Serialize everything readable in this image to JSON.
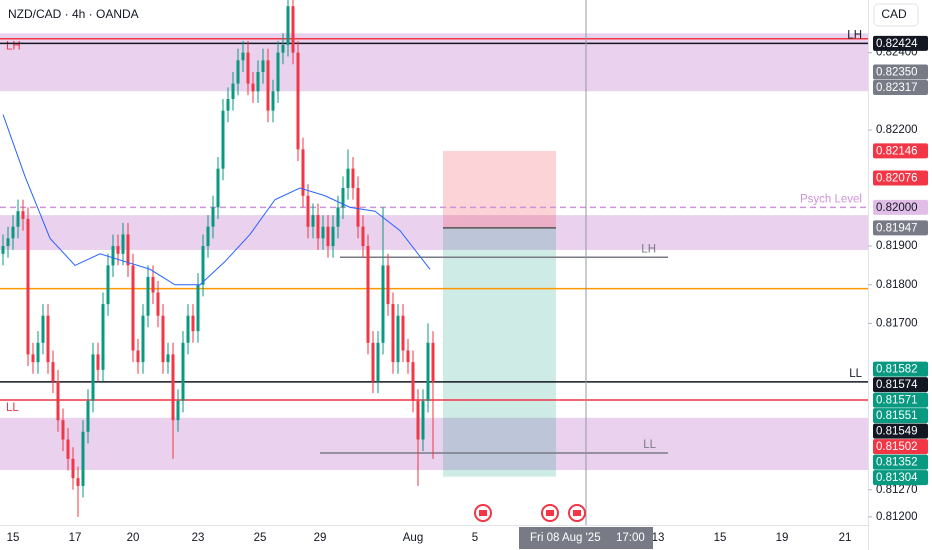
{
  "chart_data": {
    "type": "candlestick",
    "title": "NZD/CAD · 4h · OANDA",
    "currency": "CAD",
    "up_color": "#089981",
    "down_color": "#f23645",
    "open": [
      0.8188,
      0.819,
      0.8192,
      0.8195,
      0.8199,
      0.8197,
      0.8162,
      0.816,
      0.8165,
      0.8172,
      0.816,
      0.8155,
      0.8145,
      0.814,
      0.8135,
      0.813,
      0.8128,
      0.8142,
      0.815,
      0.8162,
      0.8158,
      0.8175,
      0.8185,
      0.819,
      0.8188,
      0.8193,
      0.8185,
      0.8163,
      0.816,
      0.8172,
      0.8182,
      0.8178,
      0.8172,
      0.816,
      0.8162,
      0.8145,
      0.815,
      0.8165,
      0.8172,
      0.8168,
      0.818,
      0.819,
      0.8195,
      0.82,
      0.821,
      0.8225,
      0.8228,
      0.8232,
      0.8238,
      0.824,
      0.8232,
      0.823,
      0.8235,
      0.8238,
      0.8225,
      0.823,
      0.824,
      0.8242,
      0.8252,
      0.824,
      0.8215,
      0.8203,
      0.8195,
      0.8198,
      0.8192,
      0.8195,
      0.819,
      0.8195,
      0.82,
      0.8205,
      0.821,
      0.8205,
      0.8195,
      0.819,
      0.8165,
      0.8155,
      0.8165,
      0.8185,
      0.8175,
      0.816,
      0.8172,
      0.8163,
      0.816,
      0.815,
      0.814,
      0.815,
      0.8165
    ],
    "high": [
      0.8193,
      0.8195,
      0.8198,
      0.8202,
      0.8202,
      0.82,
      0.8165,
      0.8168,
      0.8175,
      0.8175,
      0.8163,
      0.8158,
      0.8148,
      0.8143,
      0.8138,
      0.8133,
      0.8145,
      0.8153,
      0.8165,
      0.8165,
      0.8178,
      0.8188,
      0.8193,
      0.8193,
      0.8196,
      0.8196,
      0.8188,
      0.8166,
      0.8175,
      0.8185,
      0.8185,
      0.8181,
      0.8175,
      0.8165,
      0.8165,
      0.8153,
      0.8168,
      0.8175,
      0.8175,
      0.8183,
      0.8193,
      0.8198,
      0.8203,
      0.8213,
      0.8228,
      0.8231,
      0.8235,
      0.8241,
      0.8243,
      0.8243,
      0.8235,
      0.8238,
      0.8241,
      0.8241,
      0.8233,
      0.8243,
      0.8245,
      0.8254,
      0.8254,
      0.8243,
      0.8218,
      0.8206,
      0.8201,
      0.8201,
      0.8198,
      0.8198,
      0.8198,
      0.8203,
      0.8208,
      0.8215,
      0.8213,
      0.8208,
      0.8198,
      0.8193,
      0.8168,
      0.8168,
      0.82,
      0.8188,
      0.8178,
      0.8175,
      0.8175,
      0.8166,
      0.8163,
      0.8153,
      0.8153,
      0.817,
      0.8168
    ],
    "low": [
      0.8185,
      0.8187,
      0.8189,
      0.8192,
      0.8194,
      0.8159,
      0.8157,
      0.8157,
      0.8162,
      0.8157,
      0.8152,
      0.8142,
      0.8137,
      0.8132,
      0.8127,
      0.812,
      0.8125,
      0.8139,
      0.8147,
      0.8155,
      0.8155,
      0.8172,
      0.8182,
      0.8185,
      0.8185,
      0.8182,
      0.816,
      0.8157,
      0.8157,
      0.8169,
      0.8175,
      0.8169,
      0.8157,
      0.8157,
      0.8135,
      0.8142,
      0.8147,
      0.8162,
      0.8165,
      0.8165,
      0.8177,
      0.8187,
      0.8192,
      0.8197,
      0.8207,
      0.8222,
      0.8225,
      0.8229,
      0.8235,
      0.8229,
      0.8227,
      0.8227,
      0.8232,
      0.8222,
      0.8222,
      0.8227,
      0.8237,
      0.8239,
      0.8237,
      0.8212,
      0.82,
      0.8192,
      0.8192,
      0.8189,
      0.8189,
      0.8187,
      0.8187,
      0.8192,
      0.8197,
      0.8202,
      0.8202,
      0.8192,
      0.8187,
      0.8162,
      0.8152,
      0.8152,
      0.8162,
      0.8172,
      0.8157,
      0.8157,
      0.816,
      0.8157,
      0.8147,
      0.8128,
      0.8137,
      0.8147,
      0.8135
    ],
    "close": [
      0.819,
      0.8192,
      0.8195,
      0.8199,
      0.8197,
      0.8162,
      0.816,
      0.8165,
      0.8172,
      0.816,
      0.8155,
      0.8145,
      0.814,
      0.8135,
      0.813,
      0.8128,
      0.8142,
      0.815,
      0.8162,
      0.8158,
      0.8175,
      0.8185,
      0.819,
      0.8188,
      0.8193,
      0.8185,
      0.8163,
      0.816,
      0.8172,
      0.8182,
      0.8178,
      0.8172,
      0.816,
      0.8162,
      0.8145,
      0.815,
      0.8165,
      0.8172,
      0.8168,
      0.818,
      0.819,
      0.8195,
      0.82,
      0.821,
      0.8225,
      0.8228,
      0.8232,
      0.8238,
      0.824,
      0.8232,
      0.823,
      0.8235,
      0.8238,
      0.8225,
      0.823,
      0.824,
      0.8242,
      0.8252,
      0.824,
      0.8215,
      0.8203,
      0.8195,
      0.8198,
      0.8192,
      0.8195,
      0.819,
      0.8195,
      0.82,
      0.8205,
      0.821,
      0.8205,
      0.8195,
      0.819,
      0.8165,
      0.8155,
      0.8165,
      0.8185,
      0.8175,
      0.816,
      0.8172,
      0.8163,
      0.816,
      0.815,
      0.814,
      0.815,
      0.8165,
      0.81549
    ],
    "ma": {
      "color": "#2962ff",
      "x": [
        0,
        4.4,
        9.4,
        14.4,
        19.4,
        29.4,
        34.4,
        39.4,
        44.4,
        49.4,
        54.4,
        59.4,
        64.4,
        69.4,
        74.4,
        79.4,
        85.4
      ],
      "values": [
        0.8224,
        0.8208,
        0.8192,
        0.8185,
        0.8188,
        0.8184,
        0.818,
        0.818,
        0.8186,
        0.8193,
        0.8202,
        0.8205,
        0.8203,
        0.82,
        0.8199,
        0.8194,
        0.8184
      ]
    },
    "xlim": [
      -0.6,
      173
    ],
    "xticks": [
      {
        "value": 2,
        "label": "15"
      },
      {
        "value": 14.4,
        "label": "17"
      },
      {
        "value": 26,
        "label": "20"
      },
      {
        "value": 39,
        "label": "23"
      },
      {
        "value": 51.4,
        "label": "25"
      },
      {
        "value": 63.4,
        "label": "29"
      },
      {
        "value": 82,
        "label": "Aug"
      },
      {
        "value": 94.4,
        "label": "5"
      },
      {
        "value": 131,
        "label": "13"
      },
      {
        "value": 143.4,
        "label": "15"
      },
      {
        "value": 155.8,
        "label": "19"
      },
      {
        "value": 168.4,
        "label": "21"
      }
    ],
    "ylim": [
      0.81179,
      0.82536
    ],
    "yticks": [
      {
        "value": 0.812,
        "label": "0.81200"
      },
      {
        "value": 0.8127,
        "label": "0.81270"
      },
      {
        "value": 0.817,
        "label": "0.81700"
      },
      {
        "value": 0.818,
        "label": "0.81800"
      },
      {
        "value": 0.819,
        "label": "0.81900"
      },
      {
        "value": 0.822,
        "label": "0.82200"
      },
      {
        "value": 0.824,
        "label": "0.82400"
      }
    ],
    "zones": [
      {
        "from": 0.823,
        "to": 0.8245,
        "color": "#e1bee7"
      },
      {
        "from": 0.8189,
        "to": 0.8198,
        "color": "#e1bee7"
      },
      {
        "from": 0.81321,
        "to": 0.81456,
        "color": "#e1bee7"
      }
    ],
    "levels": [
      {
        "value": 0.82436,
        "color": "#f23645",
        "label": "LH",
        "side": "left"
      },
      {
        "value": 0.82424,
        "color": "#131722",
        "label": "LH",
        "side": "right"
      },
      {
        "value": 0.82,
        "color": "#ce93d8",
        "dash": true,
        "label": "Psych Level",
        "side": "right"
      },
      {
        "value": 0.8179,
        "color": "#ff9800"
      },
      {
        "value": 0.81549,
        "color": "#131722",
        "label": "LL",
        "side": "right"
      },
      {
        "value": 0.81502,
        "color": "#f23645",
        "label": "LL",
        "side": "left"
      },
      {
        "value": 0.81871,
        "color": "#787b86",
        "from": 67.4,
        "to": 133,
        "label": "LH",
        "side": "end"
      },
      {
        "value": 0.81365,
        "color": "#787b86",
        "from": 63.4,
        "to": 133,
        "label": "LL",
        "side": "end"
      }
    ],
    "position": {
      "stop": 0.82146,
      "entry": 0.81947,
      "target": 0.81304,
      "from": 88,
      "to": 110.6
    },
    "events": [
      96,
      109.4,
      114.8
    ],
    "crosshair": {
      "x": 116.6,
      "label": "Fri 08 Aug '25",
      "time": "17:00"
    },
    "price_labels": [
      {
        "value": 0.82424,
        "label": "0.82424",
        "color": "#131722"
      },
      {
        "value": 0.8235,
        "label": "0.82350",
        "color": "#787b86"
      },
      {
        "value": 0.82317,
        "label": "0.82317",
        "color": "#787b86"
      },
      {
        "value": 0.82146,
        "label": "0.82146",
        "color": "#f23645"
      },
      {
        "value": 0.82076,
        "label": "0.82076",
        "color": "#f23645"
      },
      {
        "value": 0.82,
        "label": "0.82000",
        "color": "#e1bee7"
      },
      {
        "value": 0.81947,
        "label": "0.81947",
        "color": "#787b86"
      },
      {
        "value": 0.81582,
        "label": "0.81582",
        "color": "#089981"
      },
      {
        "value": 0.81574,
        "label": "0.81574",
        "color": "#131722"
      },
      {
        "value": 0.81571,
        "label": "0.81571",
        "color": "#089981"
      },
      {
        "value": 0.81551,
        "label": "0.81551",
        "color": "#089981"
      },
      {
        "value": 0.81549,
        "label": "0.81549",
        "color": "#131722"
      },
      {
        "value": 0.81502,
        "label": "0.81502",
        "color": "#f23645"
      },
      {
        "value": 0.81352,
        "label": "0.81352",
        "color": "#089981"
      },
      {
        "value": 0.81304,
        "label": "0.81304",
        "color": "#089981"
      }
    ]
  }
}
